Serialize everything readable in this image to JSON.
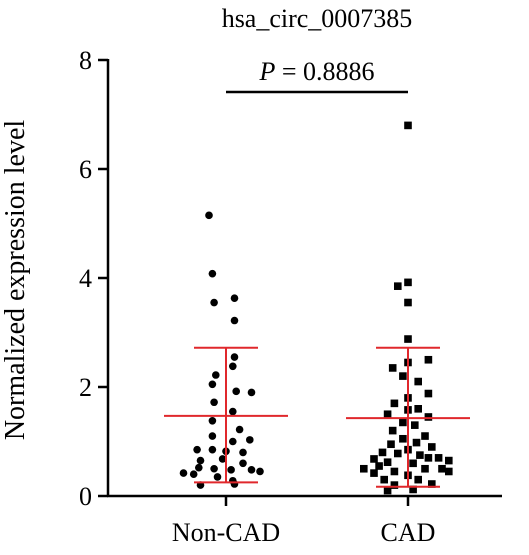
{
  "chart_data": {
    "type": "scatter",
    "title": "hsa_circ_0007385",
    "ylabel": "Normalized expression level",
    "ylim": [
      0,
      8
    ],
    "yticks": [
      "0",
      "2",
      "4",
      "6",
      "8"
    ],
    "categories": [
      "Non-CAD",
      "CAD"
    ],
    "annotation": {
      "p_label": "P",
      "p_value_text": " = 0.8886"
    },
    "colors": {
      "points": "#000000",
      "summary": "#e0282c",
      "axis": "#000000"
    },
    "series": [
      {
        "category": "Non-CAD",
        "marker": "circle",
        "mean": 1.47,
        "sd_low": 0.25,
        "sd_high": 2.72,
        "points": [
          {
            "dx": -0.1,
            "y": 5.15
          },
          {
            "dx": -0.08,
            "y": 4.08
          },
          {
            "dx": 0.05,
            "y": 3.63
          },
          {
            "dx": -0.07,
            "y": 3.55
          },
          {
            "dx": 0.05,
            "y": 3.22
          },
          {
            "dx": 0.05,
            "y": 2.55
          },
          {
            "dx": 0.04,
            "y": 2.38
          },
          {
            "dx": -0.06,
            "y": 2.22
          },
          {
            "dx": -0.08,
            "y": 2.05
          },
          {
            "dx": 0.06,
            "y": 1.92
          },
          {
            "dx": 0.15,
            "y": 1.9
          },
          {
            "dx": -0.07,
            "y": 1.72
          },
          {
            "dx": 0.04,
            "y": 1.55
          },
          {
            "dx": -0.08,
            "y": 1.38
          },
          {
            "dx": 0.08,
            "y": 1.22
          },
          {
            "dx": -0.08,
            "y": 1.1
          },
          {
            "dx": 0.14,
            "y": 1.03
          },
          {
            "dx": 0.04,
            "y": 1.0
          },
          {
            "dx": -0.17,
            "y": 0.85
          },
          {
            "dx": -0.08,
            "y": 0.85
          },
          {
            "dx": 0.0,
            "y": 0.82
          },
          {
            "dx": 0.1,
            "y": 0.8
          },
          {
            "dx": -0.15,
            "y": 0.65
          },
          {
            "dx": -0.02,
            "y": 0.68
          },
          {
            "dx": 0.1,
            "y": 0.6
          },
          {
            "dx": -0.16,
            "y": 0.52
          },
          {
            "dx": -0.07,
            "y": 0.5
          },
          {
            "dx": 0.03,
            "y": 0.48
          },
          {
            "dx": 0.15,
            "y": 0.48
          },
          {
            "dx": 0.2,
            "y": 0.45
          },
          {
            "dx": -0.25,
            "y": 0.42
          },
          {
            "dx": -0.19,
            "y": 0.4
          },
          {
            "dx": -0.05,
            "y": 0.35
          },
          {
            "dx": 0.04,
            "y": 0.28
          },
          {
            "dx": -0.15,
            "y": 0.2
          },
          {
            "dx": 0.05,
            "y": 0.22
          }
        ]
      },
      {
        "category": "CAD",
        "marker": "square",
        "mean": 1.43,
        "sd_low": 0.17,
        "sd_high": 2.72,
        "points": [
          {
            "dx": 0.0,
            "y": 6.8
          },
          {
            "dx": 0.0,
            "y": 3.92
          },
          {
            "dx": -0.06,
            "y": 3.85
          },
          {
            "dx": 0.0,
            "y": 3.55
          },
          {
            "dx": 0.0,
            "y": 2.88
          },
          {
            "dx": 0.12,
            "y": 2.5
          },
          {
            "dx": 0.0,
            "y": 2.45
          },
          {
            "dx": -0.09,
            "y": 2.35
          },
          {
            "dx": -0.03,
            "y": 2.2
          },
          {
            "dx": 0.06,
            "y": 2.1
          },
          {
            "dx": 0.12,
            "y": 1.88
          },
          {
            "dx": 0.0,
            "y": 1.8
          },
          {
            "dx": -0.08,
            "y": 1.7
          },
          {
            "dx": 0.06,
            "y": 1.6
          },
          {
            "dx": 0.0,
            "y": 1.58
          },
          {
            "dx": -0.12,
            "y": 1.5
          },
          {
            "dx": 0.12,
            "y": 1.45
          },
          {
            "dx": -0.03,
            "y": 1.35
          },
          {
            "dx": 0.04,
            "y": 1.3
          },
          {
            "dx": -0.09,
            "y": 1.2
          },
          {
            "dx": 0.1,
            "y": 1.1
          },
          {
            "dx": -0.03,
            "y": 1.05
          },
          {
            "dx": 0.05,
            "y": 0.98
          },
          {
            "dx": -0.1,
            "y": 0.95
          },
          {
            "dx": 0.14,
            "y": 0.9
          },
          {
            "dx": 0.0,
            "y": 0.85
          },
          {
            "dx": -0.15,
            "y": 0.8
          },
          {
            "dx": -0.06,
            "y": 0.78
          },
          {
            "dx": 0.07,
            "y": 0.75
          },
          {
            "dx": 0.12,
            "y": 0.7
          },
          {
            "dx": 0.18,
            "y": 0.7
          },
          {
            "dx": -0.2,
            "y": 0.68
          },
          {
            "dx": -0.12,
            "y": 0.62
          },
          {
            "dx": 0.03,
            "y": 0.6
          },
          {
            "dx": 0.24,
            "y": 0.65
          },
          {
            "dx": -0.17,
            "y": 0.55
          },
          {
            "dx": -0.26,
            "y": 0.5
          },
          {
            "dx": 0.1,
            "y": 0.5
          },
          {
            "dx": 0.2,
            "y": 0.5
          },
          {
            "dx": -0.08,
            "y": 0.45
          },
          {
            "dx": -0.2,
            "y": 0.42
          },
          {
            "dx": 0.24,
            "y": 0.45
          },
          {
            "dx": 0.0,
            "y": 0.38
          },
          {
            "dx": -0.14,
            "y": 0.3
          },
          {
            "dx": 0.06,
            "y": 0.3
          },
          {
            "dx": -0.08,
            "y": 0.2
          },
          {
            "dx": 0.14,
            "y": 0.22
          },
          {
            "dx": 0.03,
            "y": 0.12
          },
          {
            "dx": -0.12,
            "y": 0.1
          }
        ]
      }
    ]
  }
}
